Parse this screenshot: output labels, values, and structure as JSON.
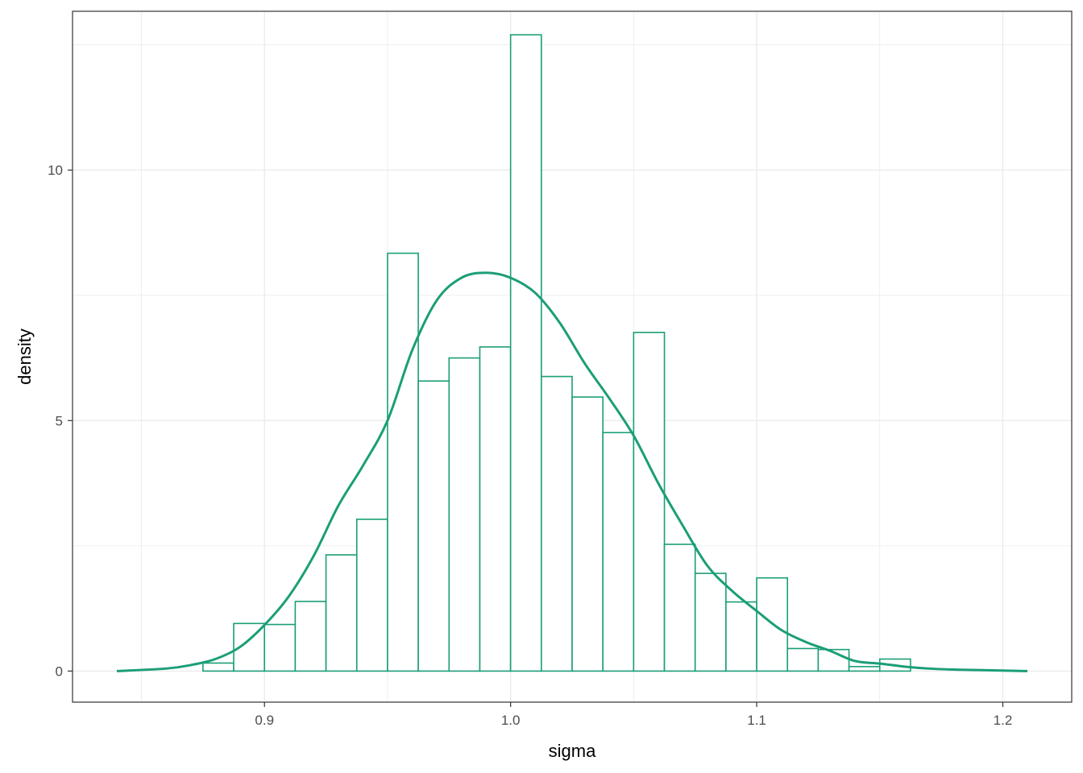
{
  "chart_data": {
    "type": "bar",
    "xlabel": "sigma",
    "ylabel": "density",
    "xlim": [
      0.822,
      1.228
    ],
    "ylim": [
      -0.62,
      13.17
    ],
    "x_ticks": [
      0.9,
      1.0,
      1.1,
      1.2
    ],
    "x_tick_labels": [
      "0.9",
      "1.0",
      "1.1",
      "1.2"
    ],
    "y_ticks": [
      0,
      5,
      10
    ],
    "y_tick_labels": [
      "0",
      "5",
      "10"
    ],
    "grid": true,
    "legend": "none",
    "bin_width": 0.0125,
    "histogram": {
      "bin_edges": [
        0.8625,
        0.875,
        0.8875,
        0.9,
        0.9125,
        0.925,
        0.9375,
        0.95,
        0.9625,
        0.975,
        0.9875,
        1.0,
        1.0125,
        1.025,
        1.0375,
        1.05,
        1.0625,
        1.075,
        1.0875,
        1.1,
        1.1125,
        1.125,
        1.1375,
        1.15,
        1.1625
      ],
      "densities": [
        0.0,
        0.16,
        0.95,
        0.93,
        1.39,
        2.32,
        3.03,
        8.34,
        5.79,
        6.25,
        6.47,
        12.7,
        5.88,
        5.47,
        4.76,
        6.76,
        2.53,
        1.95,
        1.38,
        1.86,
        0.45,
        0.43,
        0.09,
        0.24
      ]
    },
    "density_curve": {
      "x": [
        0.84,
        0.86,
        0.87,
        0.88,
        0.89,
        0.9,
        0.91,
        0.92,
        0.93,
        0.94,
        0.95,
        0.96,
        0.97,
        0.98,
        0.99,
        1.0,
        1.01,
        1.02,
        1.03,
        1.04,
        1.05,
        1.06,
        1.07,
        1.08,
        1.09,
        1.1,
        1.11,
        1.12,
        1.13,
        1.14,
        1.15,
        1.16,
        1.17,
        1.18,
        1.19,
        1.21
      ],
      "y": [
        0.0,
        0.05,
        0.12,
        0.24,
        0.48,
        0.92,
        1.5,
        2.3,
        3.3,
        4.1,
        5.0,
        6.4,
        7.4,
        7.85,
        7.95,
        7.85,
        7.55,
        6.95,
        6.15,
        5.45,
        4.7,
        3.75,
        2.9,
        2.1,
        1.6,
        1.2,
        0.82,
        0.58,
        0.4,
        0.2,
        0.15,
        0.09,
        0.05,
        0.03,
        0.02,
        0.0
      ]
    },
    "colors": {
      "series": "#1b9e77",
      "grid": "#ebebeb",
      "panel_border": "#333333"
    }
  }
}
